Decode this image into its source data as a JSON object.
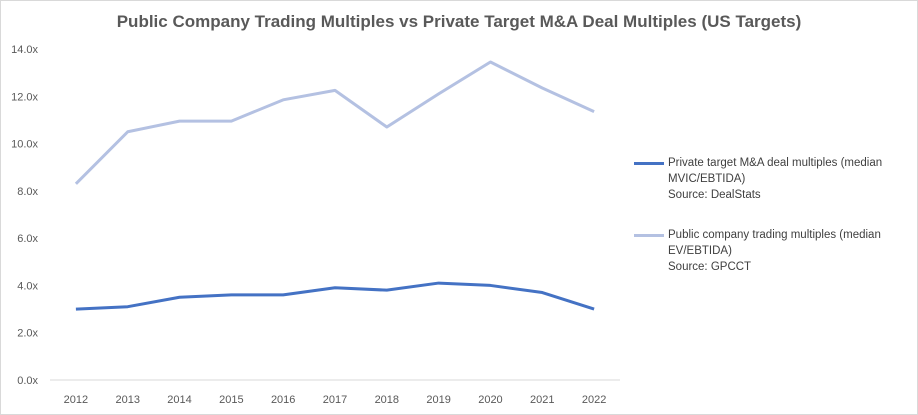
{
  "chart_data": {
    "type": "line",
    "title": "Public Company Trading Multiples vs Private Target M&A Deal Multiples (US Targets)",
    "xlabel": "",
    "ylabel": "",
    "categories": [
      "2012",
      "2013",
      "2014",
      "2015",
      "2016",
      "2017",
      "2018",
      "2019",
      "2020",
      "2021",
      "2022"
    ],
    "ylim": [
      0,
      14
    ],
    "yticks": [
      0,
      2,
      4,
      6,
      8,
      10,
      12,
      14
    ],
    "ytick_labels": [
      "0.0x",
      "2.0x",
      "4.0x",
      "6.0x",
      "8.0x",
      "10.0x",
      "12.0x",
      "14.0x"
    ],
    "grid": false,
    "legend_position": "right",
    "series": [
      {
        "name": "Private target M&A deal multiples (median MVIC/EBTIDA)",
        "name_line1": "Private target M&A deal multiples (median",
        "name_line2": "MVIC/EBTIDA)",
        "source": "Source: DealStats",
        "color": "#4472c4",
        "values": [
          3.0,
          3.1,
          3.5,
          3.6,
          3.6,
          3.9,
          3.8,
          4.1,
          4.0,
          3.7,
          3.0
        ]
      },
      {
        "name": "Public company trading multiples (median EV/EBTIDA)",
        "name_line1": "Public company trading multiples (median",
        "name_line2": "EV/EBTIDA)",
        "source": "Source: GPCCT",
        "color": "#b4c1e2",
        "values": [
          8.3,
          10.5,
          10.95,
          10.95,
          11.85,
          12.25,
          10.7,
          12.1,
          13.45,
          12.35,
          11.35
        ]
      }
    ]
  }
}
